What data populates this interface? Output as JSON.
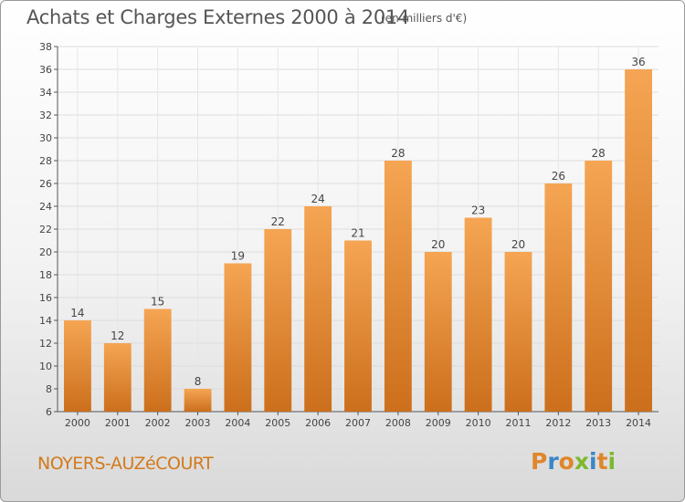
{
  "header": {
    "title": "Achats et Charges Externes 2000 à 2014",
    "unit": "(en milliers d'€)"
  },
  "footer": {
    "city": "NOYERS-AUZéCOURT",
    "logo": "Proxiti"
  },
  "colors": {
    "bar_light": "#f5a553",
    "bar_dark": "#cc6f1c",
    "city_text": "#d27a1c",
    "logo_letters": [
      "#e0862a",
      "#3a86c8",
      "#e0862a",
      "#7db82f",
      "#3a86c8",
      "#e0862a",
      "#7db82f"
    ]
  },
  "chart_data": {
    "type": "bar",
    "categories": [
      "2000",
      "2001",
      "2002",
      "2003",
      "2004",
      "2005",
      "2006",
      "2007",
      "2008",
      "2009",
      "2010",
      "2011",
      "2012",
      "2013",
      "2014"
    ],
    "values": [
      14,
      12,
      15,
      8,
      19,
      22,
      24,
      21,
      28,
      20,
      23,
      20,
      26,
      28,
      36
    ],
    "data_labels": [
      "14",
      "12",
      "15",
      "8",
      "19",
      "22",
      "24",
      "21",
      "28",
      "20",
      "23",
      "20",
      "26",
      "28",
      "36"
    ],
    "title": "Achats et Charges Externes 2000 à 2014",
    "xlabel": "",
    "ylabel": "",
    "ylim": [
      6,
      38
    ],
    "yticks": [
      6,
      8,
      10,
      12,
      14,
      16,
      18,
      20,
      22,
      24,
      26,
      28,
      30,
      32,
      34,
      36,
      38
    ],
    "grid": true
  }
}
